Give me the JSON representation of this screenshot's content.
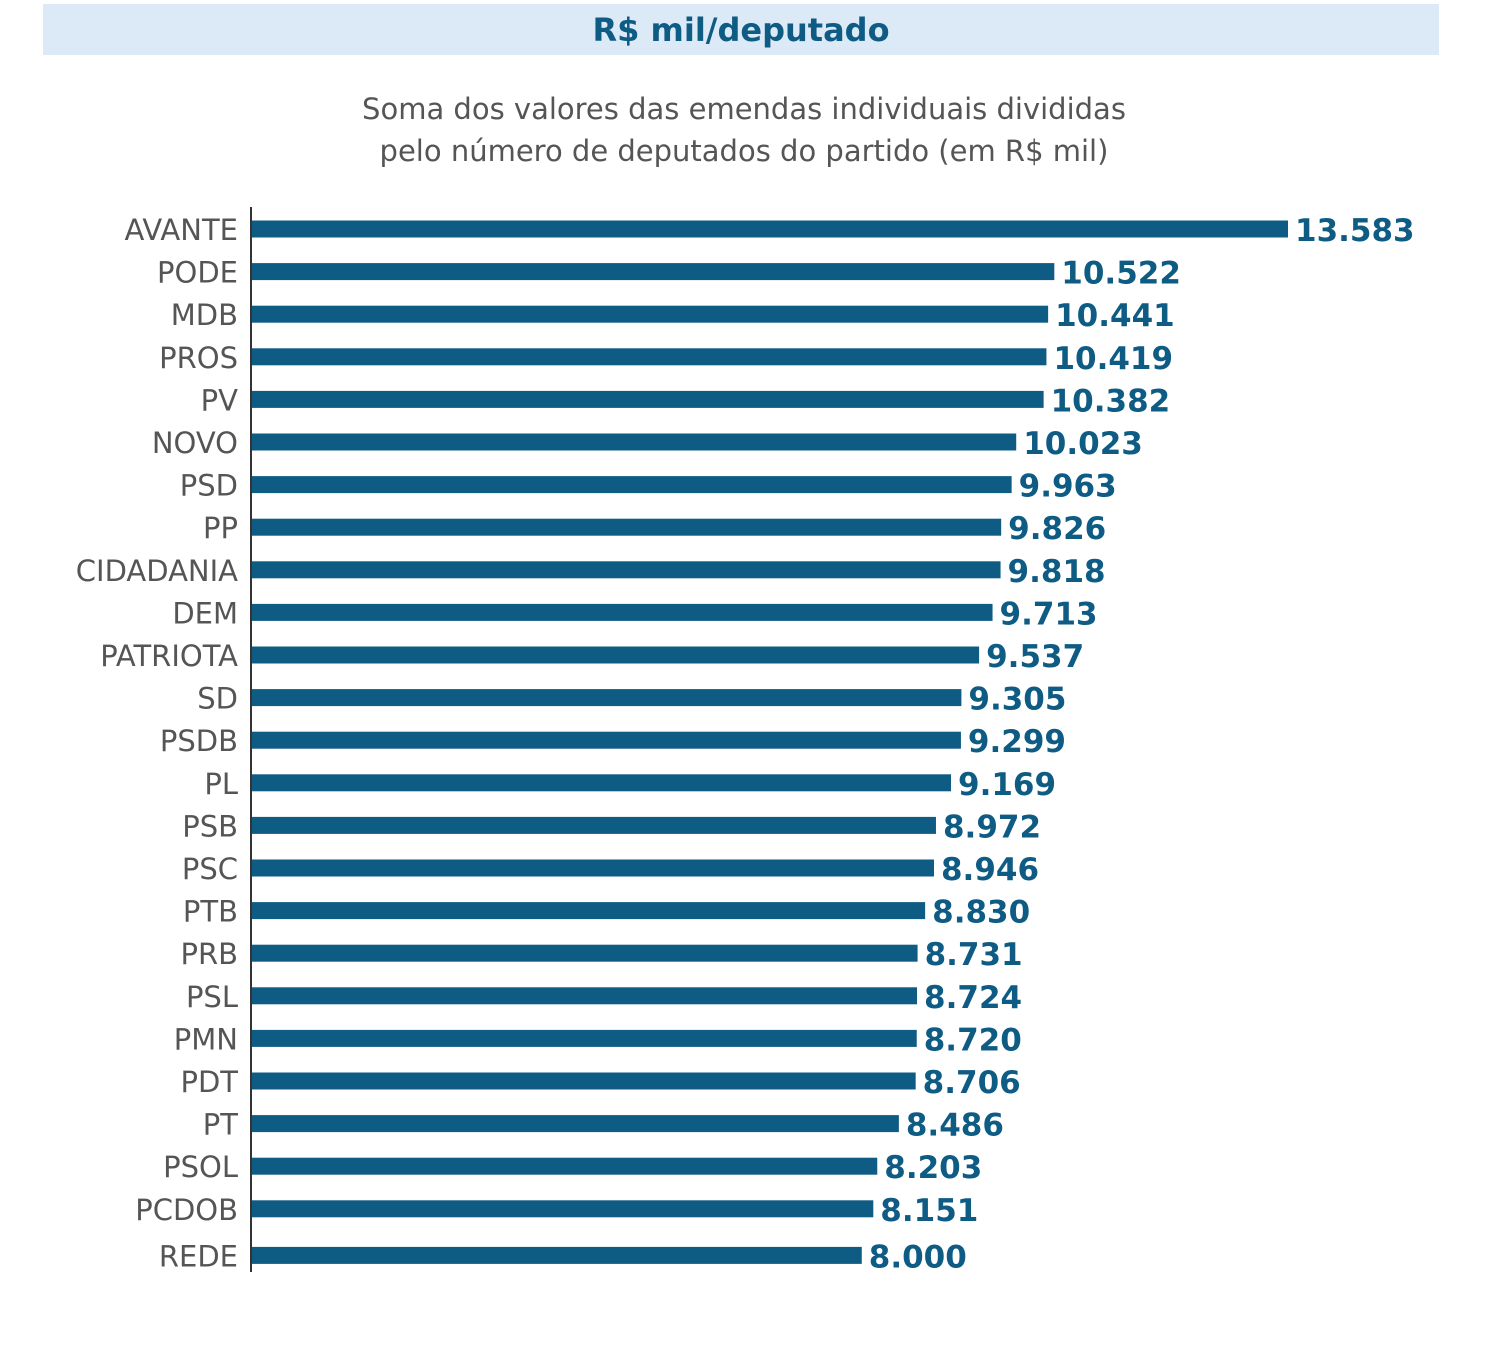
{
  "header": {
    "title": "R$ mil/deputado"
  },
  "subtitle": {
    "line1": "Soma dos valores das emendas individuais divididas",
    "line2": "pelo número de deputados do partido (em R$ mil)"
  },
  "colors": {
    "bar": "#0e5b84",
    "value_label": "#0e5b84",
    "category_label": "#555555",
    "axis": "#333333",
    "header_bg": "#dce9f7"
  },
  "chart_data": {
    "type": "bar",
    "orientation": "horizontal",
    "title": "Soma dos valores das emendas individuais divididas pelo número de deputados do partido (em R$ mil)",
    "xlabel": "",
    "ylabel": "",
    "grid": false,
    "legend": "none",
    "xlim": [
      0,
      13583
    ],
    "categories": [
      "AVANTE",
      "PODE",
      "MDB",
      "PROS",
      "PV",
      "NOVO",
      "PSD",
      "PP",
      "CIDADANIA",
      "DEM",
      "PATRIOTA",
      "SD",
      "PSDB",
      "PL",
      "PSB",
      "PSC",
      "PTB",
      "PRB",
      "PSL",
      "PMN",
      "PDT",
      "PT",
      "PSOL",
      "PCDOB",
      "REDE"
    ],
    "values": [
      13583,
      10522,
      10441,
      10419,
      10382,
      10023,
      9963,
      9826,
      9818,
      9713,
      9537,
      9305,
      9299,
      9169,
      8972,
      8946,
      8830,
      8731,
      8724,
      8720,
      8706,
      8486,
      8203,
      8151,
      8000
    ],
    "value_labels": [
      "13.583",
      "10.522",
      "10.441",
      "10.419",
      "10.382",
      "10.023",
      "9.963",
      "9.826",
      "9.818",
      "9.713",
      "9.537",
      "9.305",
      "9.299",
      "9.169",
      "8.972",
      "8.946",
      "8.830",
      "8.731",
      "8.724",
      "8.720",
      "8.706",
      "8.486",
      "8.203",
      "8.151",
      "8.000"
    ]
  }
}
